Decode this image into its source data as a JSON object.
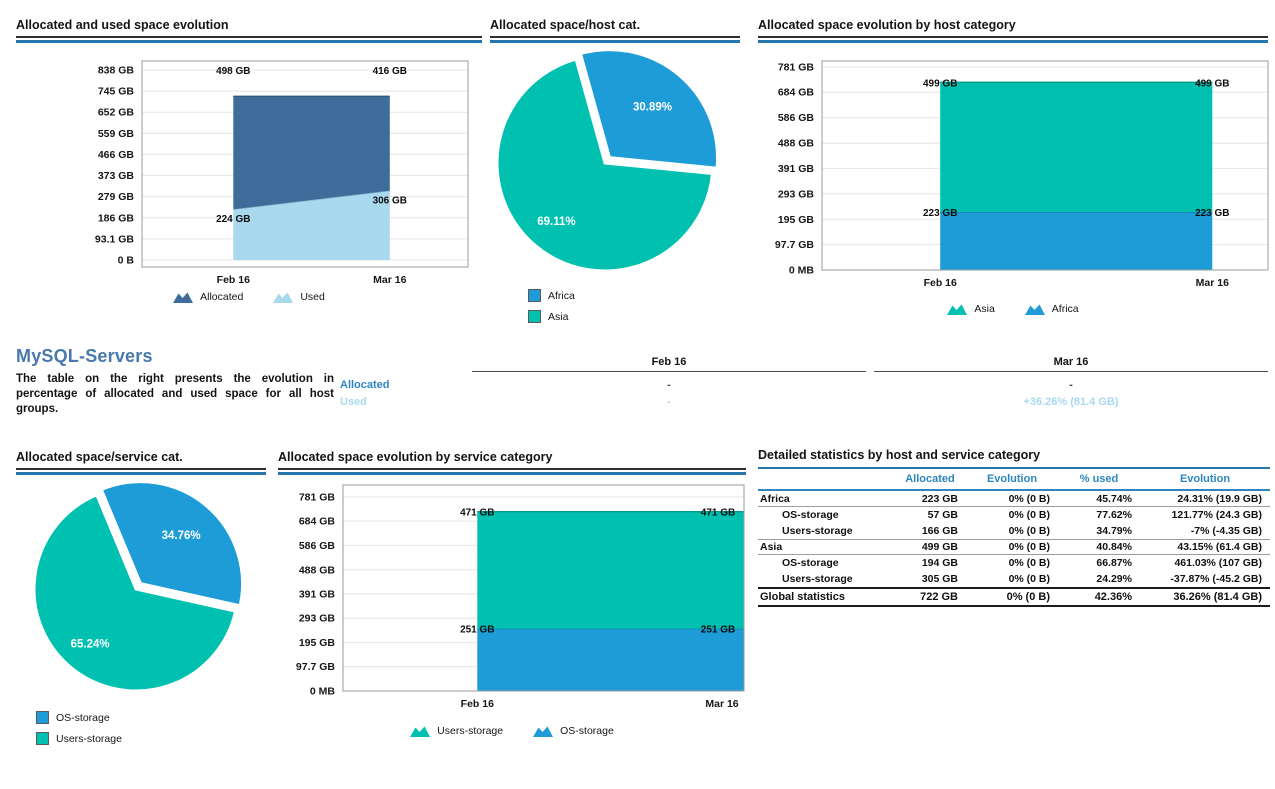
{
  "palette": {
    "allocated": "#3e6d9c",
    "used": "#a8d9ef",
    "teal": "#00c0b0",
    "blue": "#1e9cd8",
    "title_rule_blue": "#2577ae",
    "table_header_blue": "#2e86c1",
    "heading_blue": "#4779ad"
  },
  "chart_data": [
    {
      "id": "allocated-used-evolution",
      "type": "area",
      "title": "Allocated and used space evolution",
      "stacked": true,
      "x": [
        "Feb 16",
        "Mar 16"
      ],
      "ylim": [
        0,
        838
      ],
      "grid": true,
      "legend_position": "bottom",
      "y_ticks": [
        {
          "label": "0 B",
          "value": 0
        },
        {
          "label": "93.1 GB",
          "value": 93.1
        },
        {
          "label": "186 GB",
          "value": 186
        },
        {
          "label": "279 GB",
          "value": 279
        },
        {
          "label": "373 GB",
          "value": 373
        },
        {
          "label": "466 GB",
          "value": 466
        },
        {
          "label": "559 GB",
          "value": 559
        },
        {
          "label": "652 GB",
          "value": 652
        },
        {
          "label": "745 GB",
          "value": 745
        },
        {
          "label": "838 GB",
          "value": 838
        }
      ],
      "series": [
        {
          "name": "Used",
          "values": [
            224,
            306
          ],
          "point_labels": [
            "224 GB",
            "306 GB"
          ],
          "color": "#a8d9ef"
        },
        {
          "name": "Allocated",
          "values": [
            498,
            416
          ],
          "point_labels": [
            "498 GB",
            "416 GB"
          ],
          "color": "#3e6d9c"
        }
      ],
      "legend_order": [
        "Allocated",
        "Used"
      ]
    },
    {
      "id": "allocated-space-host-cat",
      "type": "pie",
      "title": "Allocated space/host cat.",
      "legend_position": "bottom-left",
      "slices": [
        {
          "name": "Africa",
          "pct": 30.89,
          "label": "30.89%",
          "color": "#1e9cd8"
        },
        {
          "name": "Asia",
          "pct": 69.11,
          "label": "69.11%",
          "color": "#00c0b0"
        }
      ]
    },
    {
      "id": "allocated-evolution-host-category",
      "type": "area",
      "title": "Allocated space evolution by host category",
      "stacked": true,
      "x": [
        "Feb 16",
        "Mar 16"
      ],
      "ylim": [
        0,
        781
      ],
      "grid": true,
      "legend_position": "bottom",
      "y_ticks": [
        {
          "label": "0 MB",
          "value": 0
        },
        {
          "label": "97.7 GB",
          "value": 97.7
        },
        {
          "label": "195 GB",
          "value": 195
        },
        {
          "label": "293 GB",
          "value": 293
        },
        {
          "label": "391 GB",
          "value": 391
        },
        {
          "label": "488 GB",
          "value": 488
        },
        {
          "label": "586 GB",
          "value": 586
        },
        {
          "label": "684 GB",
          "value": 684
        },
        {
          "label": "781 GB",
          "value": 781
        }
      ],
      "series": [
        {
          "name": "Africa",
          "values": [
            223,
            223
          ],
          "point_labels": [
            "223 GB",
            "223 GB"
          ],
          "color": "#1e9cd8"
        },
        {
          "name": "Asia",
          "values": [
            499,
            499
          ],
          "point_labels": [
            "499 GB",
            "499 GB"
          ],
          "color": "#00c0b0"
        }
      ],
      "legend_order": [
        "Asia",
        "Africa"
      ]
    },
    {
      "id": "allocated-space-service-cat",
      "type": "pie",
      "title": "Allocated space/service cat.",
      "legend_position": "bottom-left",
      "slices": [
        {
          "name": "OS-storage",
          "pct": 34.76,
          "label": "34.76%",
          "color": "#1e9cd8"
        },
        {
          "name": "Users-storage",
          "pct": 65.24,
          "label": "65.24%",
          "color": "#00c0b0"
        }
      ]
    },
    {
      "id": "allocated-evolution-service-category",
      "type": "area",
      "title": "Allocated space evolution by service category",
      "stacked": true,
      "x": [
        "Feb 16",
        "Mar 16"
      ],
      "ylim": [
        0,
        781
      ],
      "grid": true,
      "legend_position": "bottom",
      "y_ticks": [
        {
          "label": "0 MB",
          "value": 0
        },
        {
          "label": "97.7 GB",
          "value": 97.7
        },
        {
          "label": "195 GB",
          "value": 195
        },
        {
          "label": "293 GB",
          "value": 293
        },
        {
          "label": "391 GB",
          "value": 391
        },
        {
          "label": "488 GB",
          "value": 488
        },
        {
          "label": "586 GB",
          "value": 586
        },
        {
          "label": "684 GB",
          "value": 684
        },
        {
          "label": "781 GB",
          "value": 781
        }
      ],
      "series": [
        {
          "name": "OS-storage",
          "values": [
            251,
            251
          ],
          "point_labels": [
            "251 GB",
            "251 GB"
          ],
          "color": "#1e9cd8"
        },
        {
          "name": "Users-storage",
          "values": [
            471,
            471
          ],
          "point_labels": [
            "471 GB",
            "471 GB"
          ],
          "color": "#00c0b0"
        }
      ],
      "legend_order": [
        "Users-storage",
        "OS-storage"
      ]
    }
  ],
  "summary": {
    "heading": "MySQL-Servers",
    "description": "The table on the right presents the evolution in percentage of allocated and used space for all host groups.",
    "columns": [
      "Feb 16",
      "Mar 16"
    ],
    "rows": [
      {
        "label": "Allocated",
        "values": [
          "-",
          "-"
        ]
      },
      {
        "label": "Used",
        "values": [
          "-",
          "+36.26% (81.4 GB)"
        ]
      }
    ]
  },
  "detailed_table": {
    "title": "Detailed statistics by host and service category",
    "columns": [
      "",
      "Allocated",
      "Evolution",
      "% used",
      "Evolution"
    ],
    "rows": [
      {
        "label": "Africa",
        "indent": false,
        "group": true,
        "cells": [
          "223 GB",
          "0% (0 B)",
          "45.74%",
          "24.31% (19.9 GB)"
        ]
      },
      {
        "label": "OS-storage",
        "indent": true,
        "group": false,
        "cells": [
          "57 GB",
          "0% (0 B)",
          "77.62%",
          "121.77% (24.3 GB)"
        ]
      },
      {
        "label": "Users-storage",
        "indent": true,
        "group": false,
        "cells": [
          "166 GB",
          "0% (0 B)",
          "34.79%",
          "-7% (-4.35 GB)"
        ]
      },
      {
        "label": "Asia",
        "indent": false,
        "group": true,
        "cells": [
          "499 GB",
          "0% (0 B)",
          "40.84%",
          "43.15% (61.4 GB)"
        ]
      },
      {
        "label": "OS-storage",
        "indent": true,
        "group": false,
        "cells": [
          "194 GB",
          "0% (0 B)",
          "66.87%",
          "461.03% (107 GB)"
        ]
      },
      {
        "label": "Users-storage",
        "indent": true,
        "group": false,
        "cells": [
          "305 GB",
          "0% (0 B)",
          "24.29%",
          "-37.87% (-45.2 GB)"
        ]
      },
      {
        "label": "Global statistics",
        "indent": false,
        "group": "global",
        "cells": [
          "722 GB",
          "0% (0 B)",
          "42.36%",
          "36.26% (81.4 GB)"
        ]
      }
    ]
  }
}
